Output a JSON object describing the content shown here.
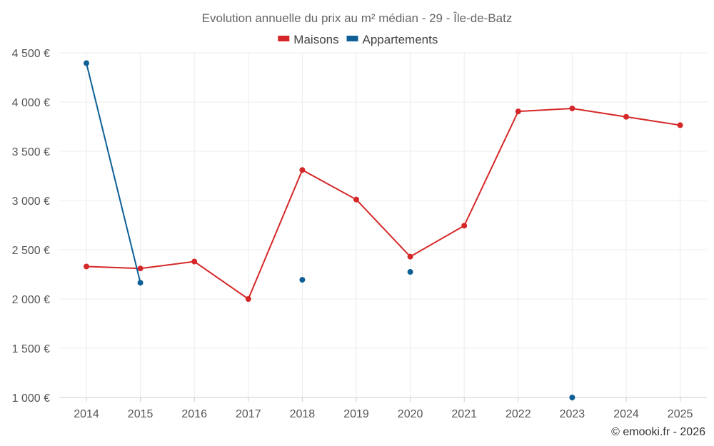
{
  "chart_data": {
    "type": "line",
    "title": "Evolution annuelle du prix au m² médian - 29 - Île-de-Batz",
    "categories": [
      "2014",
      "2015",
      "2016",
      "2017",
      "2018",
      "2019",
      "2020",
      "2021",
      "2022",
      "2023",
      "2024",
      "2025"
    ],
    "series": [
      {
        "name": "Maisons",
        "color": "#d62728",
        "values": [
          2330,
          2310,
          2380,
          2000,
          3310,
          3010,
          2430,
          2745,
          3905,
          3935,
          3850,
          3765
        ]
      },
      {
        "name": "Appartements",
        "color": "#0d5f96",
        "values": [
          4395,
          2165,
          null,
          null,
          2195,
          null,
          2275,
          null,
          null,
          1000,
          null,
          null
        ]
      }
    ],
    "ylim": [
      1000,
      4500
    ],
    "yticks": [
      1000,
      1500,
      2000,
      2500,
      3000,
      3500,
      4000,
      4500
    ],
    "ytick_labels": [
      "1 000 €",
      "1 500 €",
      "2 000 €",
      "2 500 €",
      "3 000 €",
      "3 500 €",
      "4 000 €",
      "4 500 €"
    ],
    "xlabel": "",
    "ylabel": "",
    "grid": true,
    "legend_position": "top-center"
  },
  "credit": "© emooki.fr - 2026"
}
